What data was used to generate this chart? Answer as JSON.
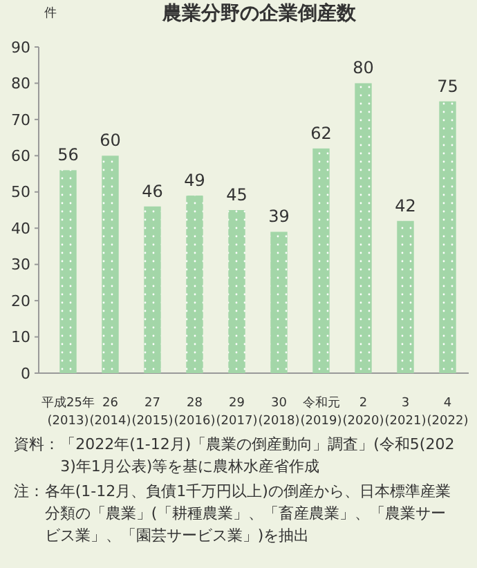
{
  "chart_data": {
    "type": "bar",
    "title": "農業分野の企業倒産数",
    "ylabel": "件",
    "categories": [
      "平成25年\n(2013)",
      "26\n(2014)",
      "27\n(2015)",
      "28\n(2016)",
      "29\n(2017)",
      "30\n(2018)",
      "令和元\n(2019)",
      "2\n(2020)",
      "3\n(2021)",
      "4\n(2022)"
    ],
    "values": [
      56,
      60,
      46,
      49,
      45,
      39,
      62,
      80,
      42,
      75
    ],
    "color": "#a3d6a8",
    "ylim": [
      0,
      90
    ],
    "yticks": [
      0,
      10,
      20,
      30,
      40,
      50,
      60,
      70,
      80,
      90
    ],
    "grid": false,
    "data_labels": true,
    "annotations": [
      "資料：「2022年(1-12月)「農業の倒産動向」調査」(令和5(2023)年1月公表)等を基に農林水産省作成",
      "注：各年(1-12月、負債1千万円以上)の倒産から、日本標準産業分類の「農業」(「耕種農業」、「畜産農業」、「農業サービス業」、「園芸サービス業」)を抽出"
    ]
  }
}
